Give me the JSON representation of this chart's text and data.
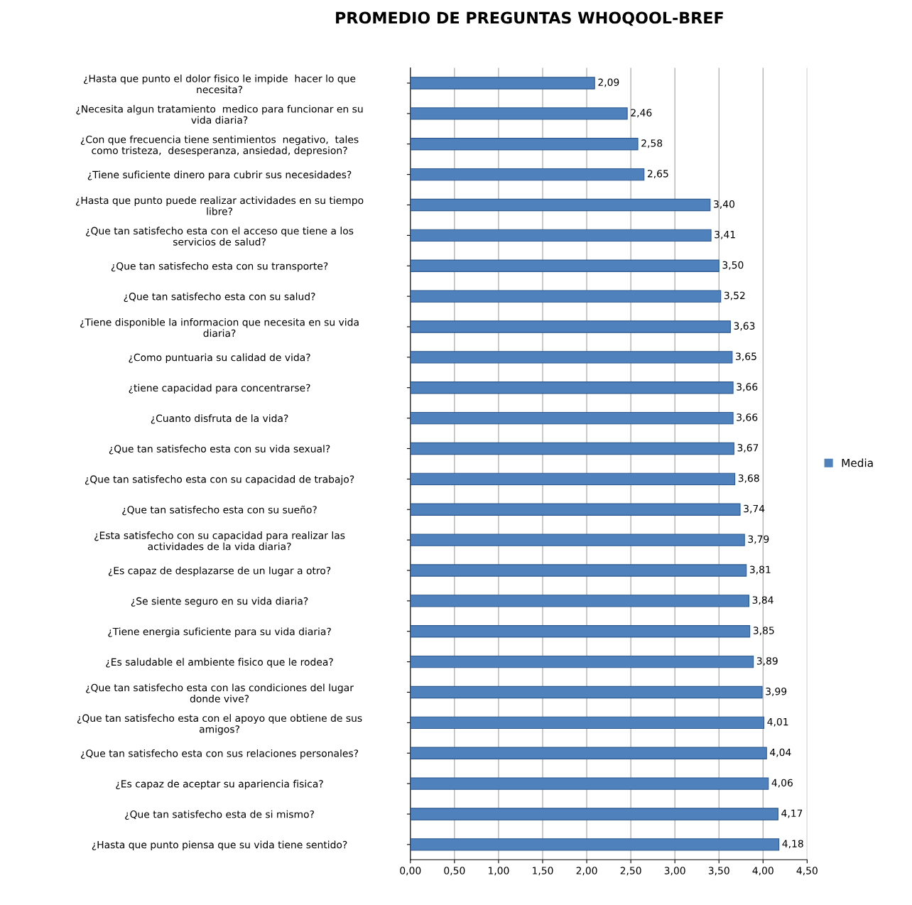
{
  "chart_data": {
    "type": "bar",
    "orientation": "horizontal",
    "title": "PROMEDIO DE PREGUNTAS WHOQOOL-BREF",
    "categories": [
      "¿Hasta que punto el dolor fisico le impide  hacer lo que necesita?",
      "¿Necesita algun tratamiento  medico para funcionar en su vida diaria?",
      "¿Con que frecuencia tiene sentimientos  negativo,  tales como tristeza,  desesperanza, ansiedad, depresion?",
      "¿Tiene suficiente dinero para cubrir sus necesidades?",
      "¿Hasta que punto puede realizar actividades en su tiempo libre?",
      "¿Que tan satisfecho esta con el acceso que tiene a los servicios de salud?",
      "¿Que tan satisfecho esta con su transporte?",
      "¿Que tan satisfecho esta con su salud?",
      "¿Tiene disponible la informacion que necesita en su vida diaria?",
      "¿Como puntuaria su calidad de vida?",
      "¿tiene capacidad para concentrarse?",
      "¿Cuanto disfruta de la vida?",
      "¿Que tan satisfecho esta con su vida sexual?",
      "¿Que tan satisfecho esta con su capacidad de trabajo?",
      "¿Que tan satisfecho esta con su sueño?",
      "¿Esta satisfecho con su capacidad para realizar las actividades de la vida diaria?",
      "¿Es capaz de desplazarse de un lugar a otro?",
      "¿Se siente seguro en su vida diaria?",
      "¿Tiene energia suficiente para su vida diaria?",
      "¿Es saludable el ambiente fisico que le rodea?",
      "¿Que tan satisfecho esta con las condiciones del lugar donde vive?",
      "¿Que tan satisfecho esta con el apoyo que obtiene de sus amigos?",
      "¿Que tan satisfecho esta con sus relaciones personales?",
      "¿Es capaz de aceptar su apariencia fisica?",
      "¿Que tan satisfecho esta de si mismo?",
      "¿Hasta que punto piensa que su vida tiene sentido?"
    ],
    "series": [
      {
        "name": "Media",
        "color": "#4f81bd",
        "values": [
          2.09,
          2.46,
          2.58,
          2.65,
          3.4,
          3.41,
          3.5,
          3.52,
          3.63,
          3.65,
          3.66,
          3.66,
          3.67,
          3.68,
          3.74,
          3.79,
          3.81,
          3.84,
          3.85,
          3.89,
          3.99,
          4.01,
          4.04,
          4.06,
          4.17,
          4.18
        ],
        "value_labels": [
          "2,09",
          "2,46",
          "2,58",
          "2,65",
          "3,40",
          "3,41",
          "3,50",
          "3,52",
          "3,63",
          "3,65",
          "3,66",
          "3,66",
          "3,67",
          "3,68",
          "3,74",
          "3,79",
          "3,81",
          "3,84",
          "3,85",
          "3,89",
          "3,99",
          "4,01",
          "4,04",
          "4,06",
          "4,17",
          "4,18"
        ]
      }
    ],
    "xlim": [
      0,
      4.5
    ],
    "xticks": [
      {
        "value": 0,
        "label": "0,00"
      },
      {
        "value": 0.5,
        "label": "0,50"
      },
      {
        "value": 1,
        "label": "1,00"
      },
      {
        "value": 1.5,
        "label": "1,50"
      },
      {
        "value": 2,
        "label": "2,00"
      },
      {
        "value": 2.5,
        "label": "2,50"
      },
      {
        "value": 3,
        "label": "3,00"
      },
      {
        "value": 3.5,
        "label": "3,50"
      },
      {
        "value": 4,
        "label": "4,00"
      },
      {
        "value": 4.5,
        "label": "4,50"
      }
    ],
    "grid": "x",
    "legend": "right"
  }
}
